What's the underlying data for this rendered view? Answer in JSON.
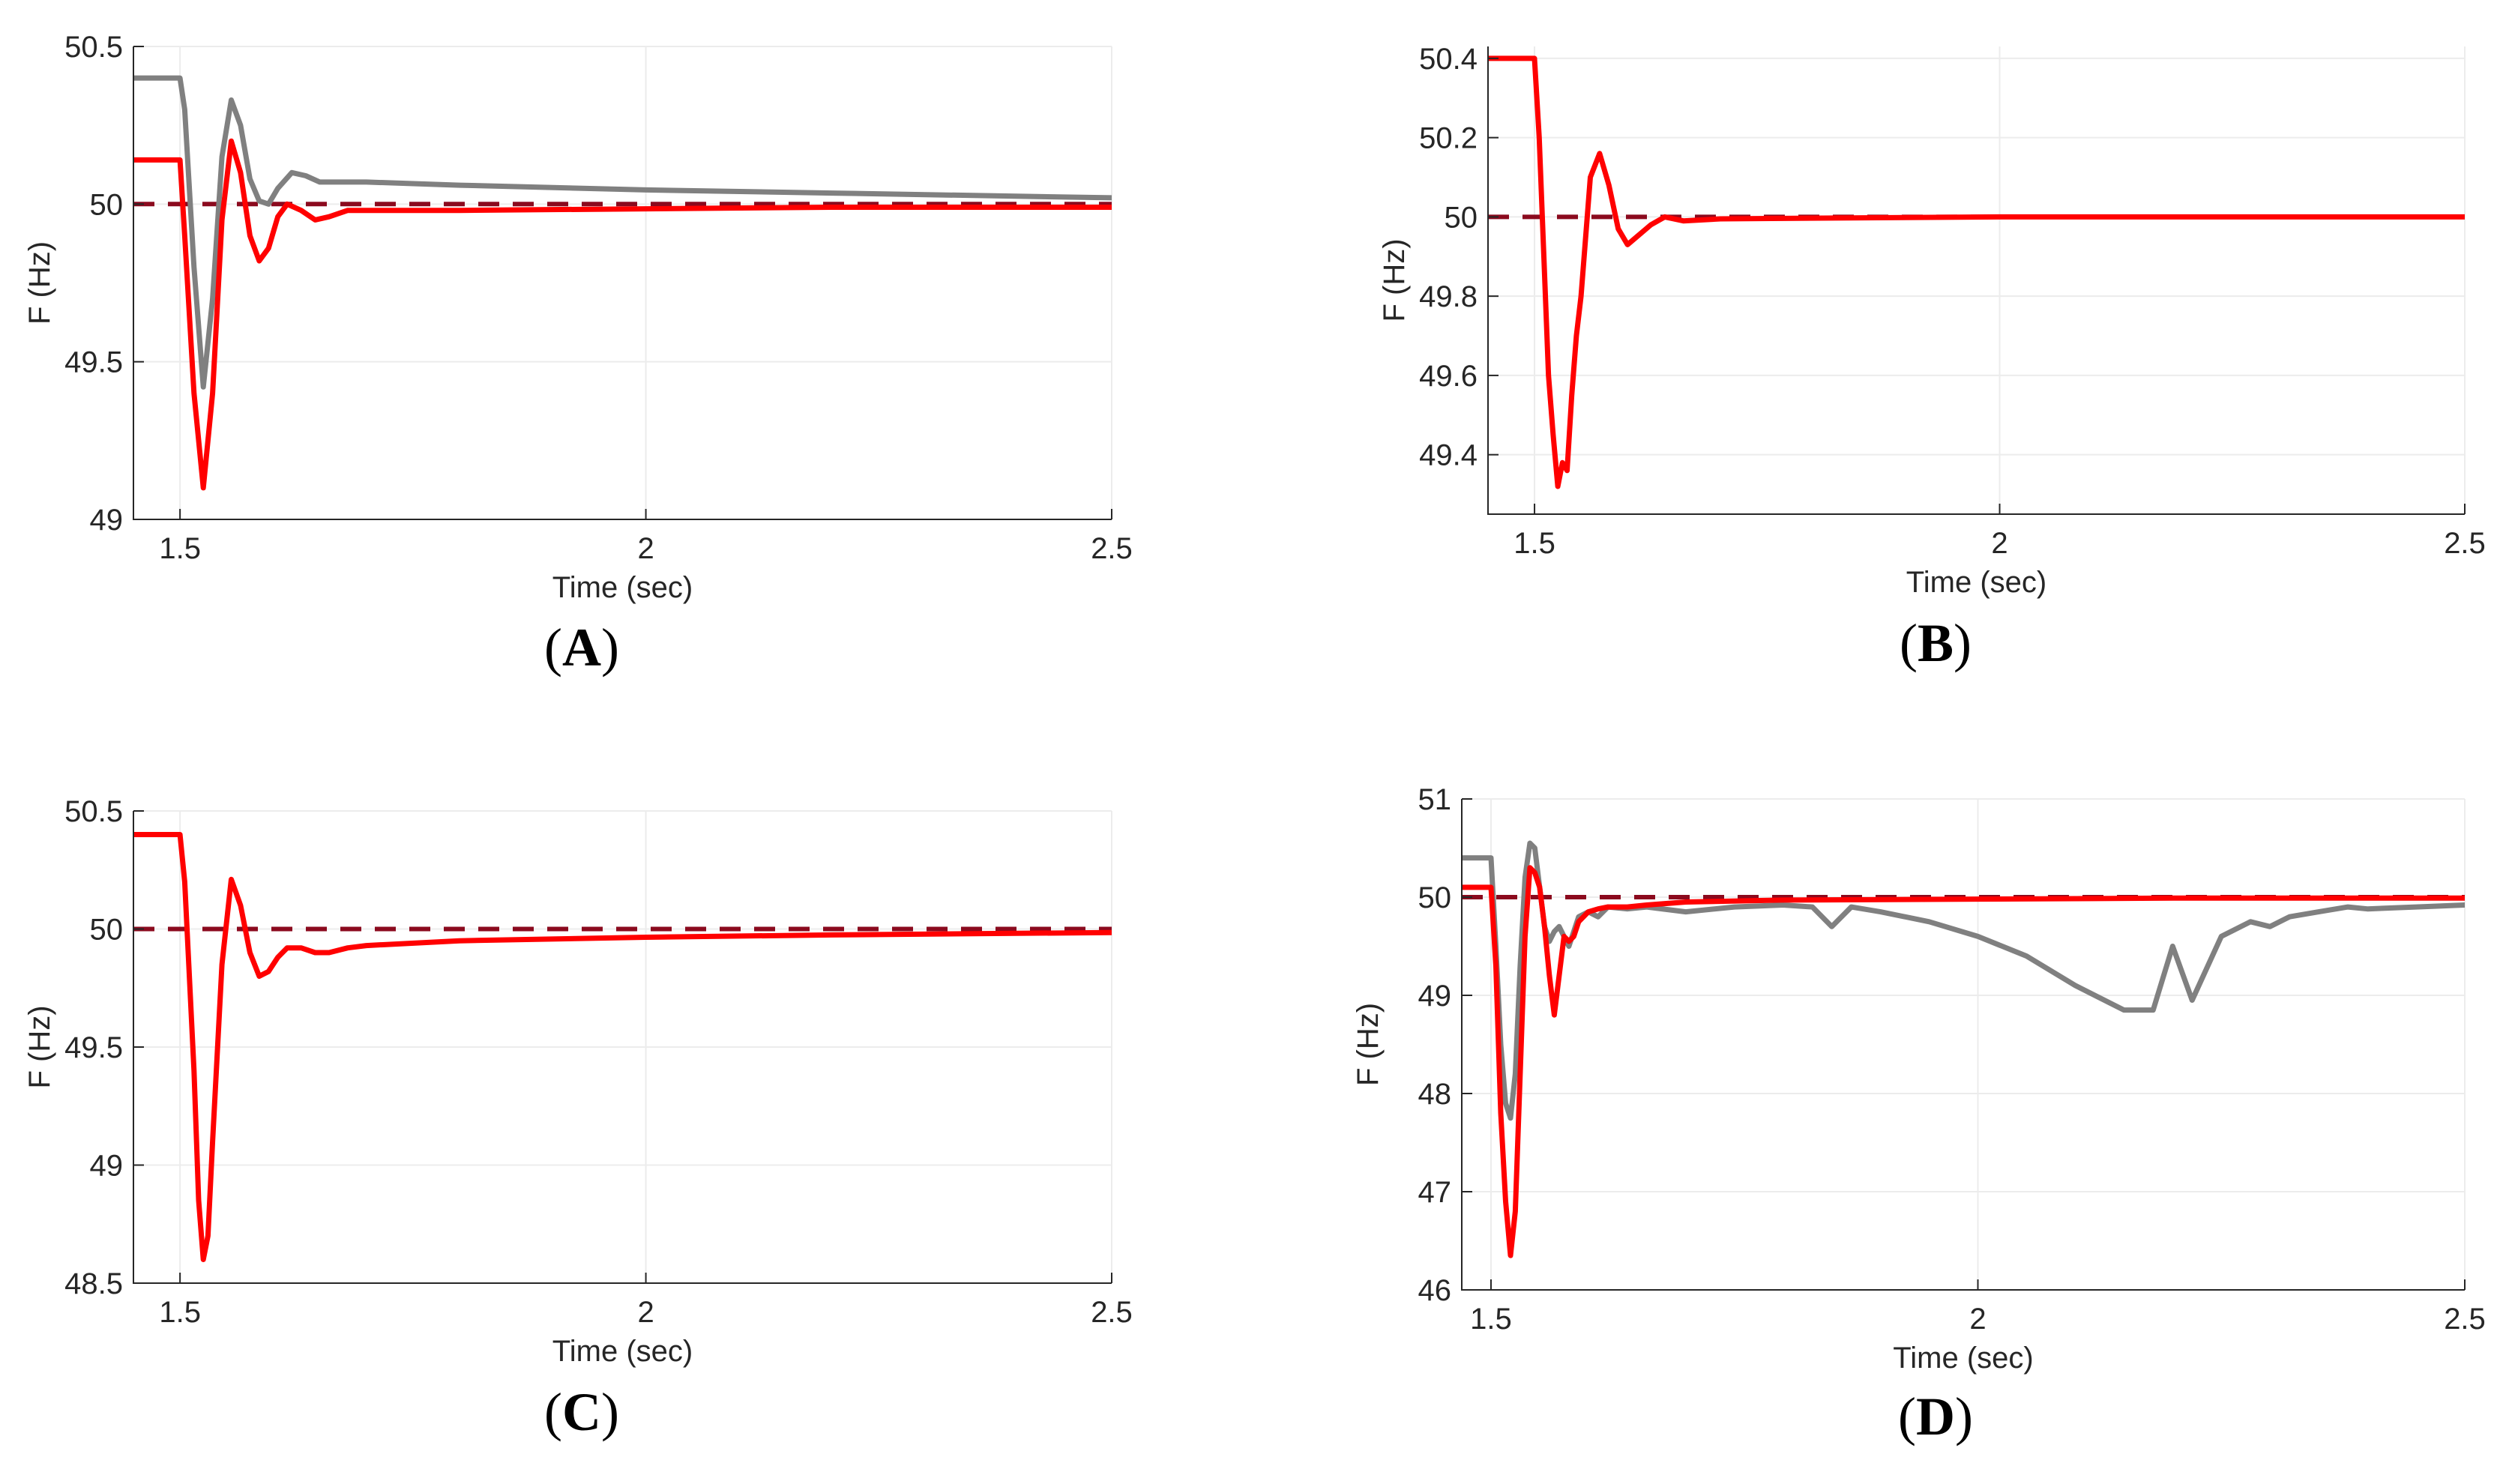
{
  "chart_data": [
    {
      "id": "A",
      "type": "line",
      "panel_label": "A",
      "xlabel": "Time (sec)",
      "ylabel": "F (Hz)",
      "xlim": [
        1.45,
        2.5
      ],
      "ylim": [
        49.0,
        50.5
      ],
      "xticks": [
        1.5,
        2,
        2.5
      ],
      "xtick_labels": [
        "1.5",
        "2",
        "2.5"
      ],
      "yticks": [
        49.0,
        49.5,
        50.0,
        50.5
      ],
      "ytick_labels": [
        "49",
        "49.5",
        "50",
        "50.5"
      ],
      "series": [
        {
          "name": "reference",
          "color": "#8b0a1e",
          "dashed": true,
          "x": [
            1.45,
            2.5
          ],
          "y": [
            50.0,
            50.0
          ]
        },
        {
          "name": "gray",
          "color": "#808080",
          "dashed": false,
          "x": [
            1.45,
            1.5,
            1.505,
            1.515,
            1.525,
            1.535,
            1.545,
            1.555,
            1.565,
            1.575,
            1.585,
            1.595,
            1.605,
            1.62,
            1.635,
            1.65,
            1.67,
            1.7,
            1.8,
            2.0,
            2.2,
            2.5
          ],
          "y": [
            50.4,
            50.4,
            50.3,
            49.8,
            49.42,
            49.7,
            50.15,
            50.33,
            50.25,
            50.08,
            50.01,
            50.0,
            50.05,
            50.1,
            50.09,
            50.07,
            50.07,
            50.07,
            50.06,
            50.045,
            50.035,
            50.02
          ]
        },
        {
          "name": "red",
          "color": "#ff0000",
          "dashed": false,
          "x": [
            1.45,
            1.5,
            1.505,
            1.515,
            1.525,
            1.535,
            1.545,
            1.555,
            1.565,
            1.575,
            1.585,
            1.595,
            1.605,
            1.615,
            1.63,
            1.645,
            1.66,
            1.68,
            1.7,
            1.8,
            2.0,
            2.2,
            2.5
          ],
          "y": [
            50.14,
            50.14,
            49.9,
            49.4,
            49.1,
            49.4,
            49.95,
            50.2,
            50.1,
            49.9,
            49.82,
            49.86,
            49.96,
            50.0,
            49.98,
            49.95,
            49.96,
            49.98,
            49.98,
            49.98,
            49.985,
            49.99,
            49.99
          ]
        }
      ]
    },
    {
      "id": "B",
      "type": "line",
      "panel_label": "B",
      "xlabel": "Time (sec)",
      "ylabel": "F (Hz)",
      "xlim": [
        1.45,
        2.5
      ],
      "ylim": [
        49.25,
        50.43
      ],
      "xticks": [
        1.5,
        2,
        2.5
      ],
      "xtick_labels": [
        "1.5",
        "2",
        "2.5"
      ],
      "yticks": [
        49.4,
        49.6,
        49.8,
        50.0,
        50.2,
        50.4
      ],
      "ytick_labels": [
        "49.4",
        "49.6",
        "49.8",
        "50",
        "50.2",
        "50.4"
      ],
      "series": [
        {
          "name": "reference",
          "color": "#8b0a1e",
          "dashed": true,
          "x": [
            1.45,
            2.5
          ],
          "y": [
            50.0,
            50.0
          ]
        },
        {
          "name": "red",
          "color": "#ff0000",
          "dashed": false,
          "x": [
            1.45,
            1.5,
            1.505,
            1.51,
            1.515,
            1.52,
            1.525,
            1.53,
            1.535,
            1.54,
            1.545,
            1.55,
            1.555,
            1.56,
            1.57,
            1.58,
            1.59,
            1.6,
            1.61,
            1.625,
            1.64,
            1.66,
            1.7,
            2.0,
            2.5
          ],
          "y": [
            50.4,
            50.4,
            50.2,
            49.9,
            49.6,
            49.45,
            49.32,
            49.38,
            49.36,
            49.55,
            49.7,
            49.8,
            49.95,
            50.1,
            50.16,
            50.08,
            49.97,
            49.93,
            49.95,
            49.98,
            50.0,
            49.99,
            49.995,
            50.0,
            50.0
          ]
        }
      ]
    },
    {
      "id": "C",
      "type": "line",
      "panel_label": "C",
      "xlabel": "Time (sec)",
      "ylabel": "F (Hz)",
      "xlim": [
        1.45,
        2.5
      ],
      "ylim": [
        48.5,
        50.5
      ],
      "xticks": [
        1.5,
        2,
        2.5
      ],
      "xtick_labels": [
        "1.5",
        "2",
        "2.5"
      ],
      "yticks": [
        48.5,
        49.0,
        49.5,
        50.0,
        50.5
      ],
      "ytick_labels": [
        "48.5",
        "49",
        "49.5",
        "50",
        "50.5"
      ],
      "series": [
        {
          "name": "reference",
          "color": "#8b0a1e",
          "dashed": true,
          "x": [
            1.45,
            2.5
          ],
          "y": [
            50.0,
            50.0
          ]
        },
        {
          "name": "red",
          "color": "#ff0000",
          "dashed": false,
          "x": [
            1.45,
            1.5,
            1.505,
            1.515,
            1.52,
            1.525,
            1.53,
            1.535,
            1.545,
            1.555,
            1.565,
            1.575,
            1.585,
            1.595,
            1.605,
            1.615,
            1.63,
            1.645,
            1.66,
            1.68,
            1.7,
            1.8,
            2.0,
            2.2,
            2.5
          ],
          "y": [
            50.4,
            50.4,
            50.2,
            49.4,
            48.85,
            48.6,
            48.7,
            49.1,
            49.85,
            50.21,
            50.1,
            49.9,
            49.8,
            49.82,
            49.88,
            49.92,
            49.92,
            49.9,
            49.9,
            49.92,
            49.93,
            49.95,
            49.965,
            49.975,
            49.985
          ]
        }
      ]
    },
    {
      "id": "D",
      "type": "line",
      "panel_label": "D",
      "xlabel": "Time (sec)",
      "ylabel": "F (Hz)",
      "xlim": [
        1.47,
        2.5
      ],
      "ylim": [
        46.0,
        51.0
      ],
      "xticks": [
        1.5,
        2,
        2.5
      ],
      "xtick_labels": [
        "1.5",
        "2",
        "2.5"
      ],
      "yticks": [
        46,
        47,
        48,
        49,
        50,
        51
      ],
      "ytick_labels": [
        "46",
        "47",
        "48",
        "49",
        "50",
        "51"
      ],
      "series": [
        {
          "name": "reference",
          "color": "#8b0a1e",
          "dashed": true,
          "x": [
            1.47,
            2.5
          ],
          "y": [
            50.0,
            50.0
          ]
        },
        {
          "name": "gray",
          "color": "#808080",
          "dashed": false,
          "x": [
            1.47,
            1.5,
            1.505,
            1.51,
            1.515,
            1.52,
            1.525,
            1.53,
            1.535,
            1.54,
            1.545,
            1.55,
            1.555,
            1.56,
            1.565,
            1.57,
            1.575,
            1.58,
            1.585,
            1.59,
            1.6,
            1.61,
            1.62,
            1.64,
            1.66,
            1.7,
            1.75,
            1.8,
            1.83,
            1.85,
            1.87,
            1.9,
            1.95,
            2.0,
            2.05,
            2.1,
            2.15,
            2.18,
            2.2,
            2.22,
            2.25,
            2.28,
            2.3,
            2.32,
            2.35,
            2.38,
            2.4,
            2.45,
            2.5
          ],
          "y": [
            50.4,
            50.4,
            49.5,
            48.5,
            47.9,
            47.75,
            48.2,
            49.3,
            50.2,
            50.55,
            50.5,
            50.1,
            49.7,
            49.55,
            49.65,
            49.7,
            49.6,
            49.5,
            49.65,
            49.8,
            49.85,
            49.8,
            49.9,
            49.88,
            49.9,
            49.85,
            49.9,
            49.92,
            49.9,
            49.7,
            49.9,
            49.85,
            49.75,
            49.6,
            49.4,
            49.1,
            48.85,
            48.85,
            49.5,
            48.95,
            49.6,
            49.75,
            49.7,
            49.8,
            49.85,
            49.9,
            49.88,
            49.9,
            49.92
          ]
        },
        {
          "name": "red",
          "color": "#ff0000",
          "dashed": false,
          "x": [
            1.47,
            1.5,
            1.505,
            1.51,
            1.515,
            1.52,
            1.525,
            1.53,
            1.535,
            1.54,
            1.545,
            1.55,
            1.555,
            1.56,
            1.565,
            1.57,
            1.575,
            1.58,
            1.585,
            1.59,
            1.6,
            1.61,
            1.62,
            1.64,
            1.66,
            1.7,
            1.8,
            2.0,
            2.2,
            2.5
          ],
          "y": [
            50.1,
            50.1,
            49.3,
            47.8,
            46.9,
            46.35,
            46.8,
            48.2,
            49.6,
            50.3,
            50.25,
            50.1,
            49.7,
            49.2,
            48.8,
            49.2,
            49.6,
            49.55,
            49.6,
            49.75,
            49.85,
            49.88,
            49.9,
            49.9,
            49.92,
            49.95,
            49.97,
            49.98,
            49.99,
            49.99
          ]
        }
      ]
    }
  ]
}
